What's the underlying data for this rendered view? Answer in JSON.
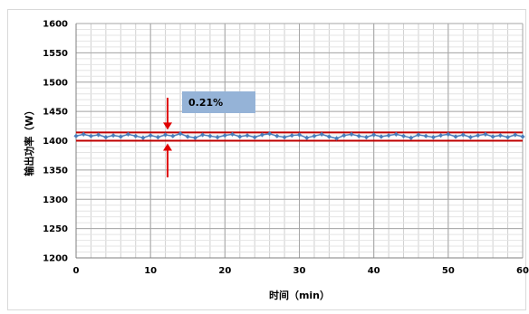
{
  "chart_data": {
    "type": "line",
    "title": "",
    "xlabel": "时间（min）",
    "ylabel": "输出功率（W）",
    "xlim": [
      0,
      60
    ],
    "ylim": [
      1200,
      1600
    ],
    "x_ticks": [
      0,
      10,
      20,
      30,
      40,
      50,
      60
    ],
    "y_ticks": [
      1200,
      1250,
      1300,
      1350,
      1400,
      1450,
      1500,
      1550,
      1600
    ],
    "x_minor_step": 2,
    "y_minor_step": 10,
    "grid": true,
    "series": [
      {
        "color": "#4a7ebb",
        "marker": "diamond",
        "x": [
          0,
          1,
          2,
          3,
          4,
          5,
          6,
          7,
          8,
          9,
          10,
          11,
          12,
          13,
          14,
          15,
          16,
          17,
          18,
          19,
          20,
          21,
          22,
          23,
          24,
          25,
          26,
          27,
          28,
          29,
          30,
          31,
          32,
          33,
          34,
          35,
          36,
          37,
          38,
          39,
          40,
          41,
          42,
          43,
          44,
          45,
          46,
          47,
          48,
          49,
          50,
          51,
          52,
          53,
          54,
          55,
          56,
          57,
          58,
          59,
          60
        ],
        "y": [
          1408,
          1411,
          1408,
          1410,
          1406,
          1409,
          1407,
          1411,
          1408,
          1405,
          1409,
          1406,
          1410,
          1408,
          1412,
          1407,
          1405,
          1410,
          1408,
          1406,
          1409,
          1411,
          1407,
          1409,
          1406,
          1410,
          1412,
          1408,
          1406,
          1409,
          1410,
          1405,
          1408,
          1411,
          1407,
          1404,
          1409,
          1411,
          1408,
          1406,
          1410,
          1407,
          1409,
          1411,
          1408,
          1405,
          1410,
          1408,
          1406,
          1409,
          1411,
          1407,
          1410,
          1406,
          1409,
          1411,
          1407,
          1409,
          1406,
          1410,
          1407
        ]
      }
    ],
    "reference_lines": [
      {
        "y": 1414,
        "color": "#c00000"
      },
      {
        "y": 1400,
        "color": "#c00000"
      }
    ],
    "annotation": {
      "text": "0.21%",
      "box_color": "#95b3d7",
      "arrow_color": "#e00000"
    }
  }
}
